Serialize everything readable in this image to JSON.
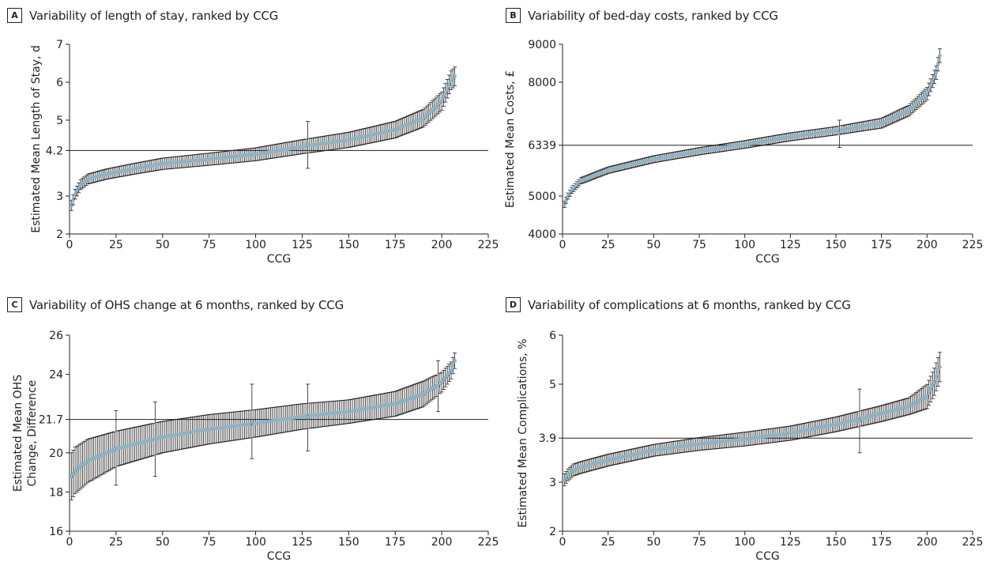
{
  "chart_data": [
    {
      "id": "A",
      "type": "scatter",
      "letter": "A",
      "title": "Variability of length of stay, ranked by CCG",
      "xlabel": "CCG",
      "ylabel": "Estimated Mean Length of Stay, d",
      "xlim": [
        0,
        225
      ],
      "ylim": [
        2,
        7
      ],
      "xticks": [
        "0",
        "25",
        "50",
        "75",
        "100",
        "125",
        "150",
        "175",
        "200",
        "225"
      ],
      "yticks": [
        "2",
        "3",
        "4.2",
        "5",
        "6",
        "7"
      ],
      "reference_line": 4.2,
      "n_points": 207,
      "series": [
        {
          "curve_knots": [
            [
              1,
              2.75
            ],
            [
              3,
              3.05
            ],
            [
              6,
              3.3
            ],
            [
              10,
              3.45
            ],
            [
              20,
              3.58
            ],
            [
              35,
              3.72
            ],
            [
              50,
              3.85
            ],
            [
              75,
              3.97
            ],
            [
              100,
              4.1
            ],
            [
              125,
              4.3
            ],
            [
              150,
              4.48
            ],
            [
              175,
              4.75
            ],
            [
              190,
              5.05
            ],
            [
              200,
              5.5
            ],
            [
              205,
              6.05
            ],
            [
              207,
              6.15
            ]
          ],
          "error_knots": [
            [
              1,
              0.13
            ],
            [
              10,
              0.13
            ],
            [
              50,
              0.15
            ],
            [
              100,
              0.17
            ],
            [
              150,
              0.2
            ],
            [
              190,
              0.23
            ],
            [
              207,
              0.25
            ]
          ],
          "outliers": [
            [
              128,
              4.35,
              0.62
            ]
          ]
        }
      ]
    },
    {
      "id": "B",
      "type": "scatter",
      "letter": "B",
      "title": "Variability of bed-day costs, ranked by CCG",
      "xlabel": "CCG",
      "ylabel": "Estimated Mean Costs, £",
      "xlim": [
        0,
        225
      ],
      "ylim": [
        4000,
        9000
      ],
      "xticks": [
        "0",
        "25",
        "50",
        "75",
        "100",
        "125",
        "150",
        "175",
        "200",
        "225"
      ],
      "yticks": [
        "4000",
        "5000",
        "6339",
        "8000",
        "9000"
      ],
      "reference_line": 6339,
      "n_points": 207,
      "series": [
        {
          "curve_knots": [
            [
              1,
              4780
            ],
            [
              3,
              5000
            ],
            [
              5,
              5150
            ],
            [
              10,
              5400
            ],
            [
              25,
              5680
            ],
            [
              50,
              5970
            ],
            [
              75,
              6180
            ],
            [
              100,
              6360
            ],
            [
              125,
              6560
            ],
            [
              150,
              6720
            ],
            [
              175,
              6920
            ],
            [
              190,
              7250
            ],
            [
              200,
              7700
            ],
            [
              205,
              8250
            ],
            [
              207,
              8700
            ]
          ],
          "error_knots": [
            [
              1,
              80
            ],
            [
              50,
              90
            ],
            [
              100,
              100
            ],
            [
              150,
              110
            ],
            [
              190,
              140
            ],
            [
              207,
              180
            ]
          ],
          "outliers": [
            [
              152,
              6640,
              360
            ]
          ]
        }
      ]
    },
    {
      "id": "C",
      "type": "scatter",
      "letter": "C",
      "title": "Variability of OHS change at 6 months, ranked by CCG",
      "xlabel": "CCG",
      "ylabel": "Estimated Mean OHS Change, Difference",
      "ylabel_lines": [
        "Estimated Mean OHS",
        "Change, Difference"
      ],
      "xlim": [
        0,
        225
      ],
      "ylim": [
        16,
        26
      ],
      "xticks": [
        "0",
        "25",
        "50",
        "75",
        "100",
        "125",
        "150",
        "175",
        "200",
        "225"
      ],
      "yticks": [
        "16",
        "18",
        "20",
        "21.7",
        "24",
        "26"
      ],
      "reference_line": 21.7,
      "n_points": 207,
      "series": [
        {
          "curve_knots": [
            [
              1,
              18.8
            ],
            [
              3,
              19.1
            ],
            [
              10,
              19.6
            ],
            [
              25,
              20.2
            ],
            [
              50,
              20.8
            ],
            [
              75,
              21.2
            ],
            [
              100,
              21.5
            ],
            [
              125,
              21.85
            ],
            [
              150,
              22.1
            ],
            [
              175,
              22.5
            ],
            [
              190,
              23.0
            ],
            [
              200,
              23.6
            ],
            [
              205,
              24.2
            ],
            [
              207,
              24.7
            ]
          ],
          "error_knots": [
            [
              1,
              1.2
            ],
            [
              10,
              1.1
            ],
            [
              25,
              0.9
            ],
            [
              50,
              0.8
            ],
            [
              100,
              0.7
            ],
            [
              150,
              0.6
            ],
            [
              190,
              0.65
            ],
            [
              207,
              0.4
            ]
          ],
          "outliers": [
            [
              25,
              20.25,
              1.9
            ],
            [
              46,
              20.7,
              1.9
            ],
            [
              98,
              21.6,
              1.9
            ],
            [
              128,
              21.8,
              1.7
            ],
            [
              198,
              23.4,
              1.3
            ]
          ]
        }
      ]
    },
    {
      "id": "D",
      "type": "scatter",
      "letter": "D",
      "title": "Variability of complications at 6 months, ranked by CCG",
      "xlabel": "CCG",
      "ylabel": "Estimated Mean Complications, %",
      "xlim": [
        0,
        225
      ],
      "ylim": [
        2,
        6
      ],
      "xticks": [
        "0",
        "25",
        "50",
        "75",
        "100",
        "125",
        "150",
        "175",
        "200",
        "225"
      ],
      "yticks": [
        "2",
        "3",
        "3.9",
        "5",
        "6"
      ],
      "reference_line": 3.9,
      "n_points": 207,
      "series": [
        {
          "curve_knots": [
            [
              1,
              3.05
            ],
            [
              3,
              3.15
            ],
            [
              6,
              3.25
            ],
            [
              10,
              3.3
            ],
            [
              25,
              3.45
            ],
            [
              50,
              3.65
            ],
            [
              75,
              3.78
            ],
            [
              100,
              3.88
            ],
            [
              125,
              4.0
            ],
            [
              150,
              4.18
            ],
            [
              175,
              4.4
            ],
            [
              190,
              4.55
            ],
            [
              200,
              4.75
            ],
            [
              204,
              5.05
            ],
            [
              207,
              5.35
            ]
          ],
          "error_knots": [
            [
              1,
              0.12
            ],
            [
              50,
              0.12
            ],
            [
              100,
              0.14
            ],
            [
              150,
              0.15
            ],
            [
              190,
              0.17
            ],
            [
              207,
              0.3
            ]
          ],
          "outliers": [
            [
              163,
              4.25,
              0.65
            ]
          ]
        }
      ]
    }
  ]
}
